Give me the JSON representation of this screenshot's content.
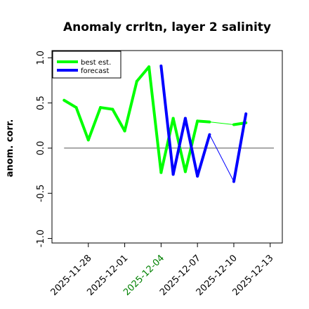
{
  "chart_data": {
    "type": "line",
    "title": "Anomaly crrltn, layer 2 salinity",
    "xlabel": "",
    "ylabel": "anom. corr.",
    "ylim": [
      -1.05,
      1.08
    ],
    "xlim": [
      "2025-11-25",
      "2025-12-14"
    ],
    "grid": false,
    "legend_position": "top-left",
    "reference_line_y": 0.0,
    "y_ticks": [
      {
        "value": -1.0,
        "label": "-1.0"
      },
      {
        "value": -0.5,
        "label": "-0.5"
      },
      {
        "value": 0.0,
        "label": "0.0"
      },
      {
        "value": 0.5,
        "label": "0.5"
      },
      {
        "value": 1.0,
        "label": "1.0"
      }
    ],
    "x_ticks": [
      {
        "date": "2025-11-28",
        "label": "2025-11-28",
        "color": "#000000"
      },
      {
        "date": "2025-12-01",
        "label": "2025-12-01",
        "color": "#000000"
      },
      {
        "date": "2025-12-04",
        "label": "2025-12-04",
        "color": "#008000"
      },
      {
        "date": "2025-12-07",
        "label": "2025-12-07",
        "color": "#000000"
      },
      {
        "date": "2025-12-10",
        "label": "2025-12-10",
        "color": "#000000"
      },
      {
        "date": "2025-12-13",
        "label": "2025-12-13",
        "color": "#000000"
      }
    ],
    "series": [
      {
        "name": "best est.",
        "color": "#00ff00",
        "x": [
          "2025-11-26",
          "2025-11-27",
          "2025-11-28",
          "2025-11-29",
          "2025-11-30",
          "2025-12-01",
          "2025-12-02",
          "2025-12-03",
          "2025-12-04",
          "2025-12-05",
          "2025-12-06",
          "2025-12-07",
          "2025-12-08",
          "2025-12-10",
          "2025-12-11"
        ],
        "y": [
          0.53,
          0.45,
          0.09,
          0.45,
          0.43,
          0.19,
          0.74,
          0.9,
          -0.27,
          0.33,
          -0.26,
          0.3,
          0.29,
          0.26,
          0.28
        ]
      },
      {
        "name": "forecast",
        "color": "#0000ff",
        "x": [
          "2025-12-04",
          "2025-12-05",
          "2025-12-06",
          "2025-12-07",
          "2025-12-08",
          "2025-12-10",
          "2025-12-11"
        ],
        "y": [
          0.91,
          -0.29,
          0.33,
          -0.31,
          0.15,
          -0.37,
          0.38
        ]
      }
    ]
  }
}
